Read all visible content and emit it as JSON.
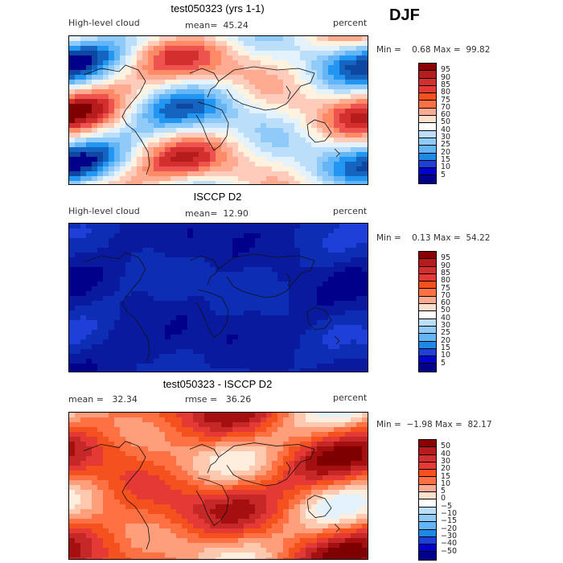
{
  "season": "DJF",
  "panels": [
    {
      "title": "test050323 (yrs 1-1)",
      "left_label": "High-level cloud",
      "mean_label": "mean=  45.24",
      "units": "percent",
      "minmax": "Min =    0.68 Max =  99.82",
      "map_colors": [
        "#7f0000",
        "#b71c1c",
        "#d32f2f",
        "#ef5350",
        "#ff8a65",
        "#ffab91",
        "#ffccbc",
        "#fff3e0",
        "#e3f2fd",
        "#bbdefb",
        "#90caf9",
        "#64b5f6",
        "#2196f3",
        "#1565c0",
        "#0d47a1",
        "#00008b"
      ],
      "colorbar": {
        "labels": [
          "95",
          "90",
          "85",
          "80",
          "75",
          "70",
          "60",
          "50",
          "40",
          "30",
          "25",
          "20",
          "15",
          "10",
          "5"
        ],
        "colors": [
          "#8b0000",
          "#b71c1c",
          "#d32f2f",
          "#e53935",
          "#f4511e",
          "#ff7043",
          "#ffab91",
          "#ffe0cc",
          "#ffffff",
          "#bbdefb",
          "#90caf9",
          "#64b5f6",
          "#1e88e5",
          "#1e40d8",
          "#0000cd",
          "#00008b"
        ]
      }
    },
    {
      "title": "ISCCP D2",
      "left_label": "High-level cloud",
      "mean_label": "mean=  12.90",
      "units": "percent",
      "minmax": "Min =    0.13 Max =  54.22",
      "map_colors": [
        "#00008b",
        "#0a1a9e",
        "#0d2db5",
        "#1e40d8",
        "#2f5bea",
        "#4a78f0",
        "#6f97f5",
        "#a8c4fa",
        "#dbe7fd"
      ],
      "colorbar": {
        "labels": [
          "95",
          "90",
          "85",
          "80",
          "75",
          "70",
          "60",
          "50",
          "40",
          "30",
          "25",
          "20",
          "15",
          "10",
          "5"
        ],
        "colors": [
          "#8b0000",
          "#b71c1c",
          "#d32f2f",
          "#e53935",
          "#f4511e",
          "#ff7043",
          "#ffab91",
          "#ffe0cc",
          "#ffffff",
          "#bbdefb",
          "#90caf9",
          "#64b5f6",
          "#1e88e5",
          "#1e40d8",
          "#0000cd",
          "#00008b"
        ]
      }
    },
    {
      "title": "test050323 - ISCCP D2",
      "left_label": "mean =   32.34",
      "mean_label": "rmse =   36.26",
      "units": "percent",
      "minmax": "Min =  −1.98 Max =  82.17",
      "map_colors": [
        "#7f0000",
        "#a50f0f",
        "#c62828",
        "#e53935",
        "#f4511e",
        "#ff7043",
        "#ff9e7a",
        "#ffc9b0",
        "#ffeedd",
        "#e3f2fd"
      ],
      "colorbar": {
        "labels": [
          "50",
          "40",
          "30",
          "20",
          "15",
          "10",
          "5",
          "0",
          "−5",
          "−10",
          "−15",
          "−20",
          "−30",
          "−40",
          "−50"
        ],
        "colors": [
          "#8b0000",
          "#b71c1c",
          "#d32f2f",
          "#e53935",
          "#f4511e",
          "#ff7043",
          "#ffab91",
          "#ffe0cc",
          "#ffffff",
          "#bbdefb",
          "#90caf9",
          "#64b5f6",
          "#1e88e5",
          "#1e40d8",
          "#0000cd",
          "#00008b"
        ]
      }
    }
  ]
}
